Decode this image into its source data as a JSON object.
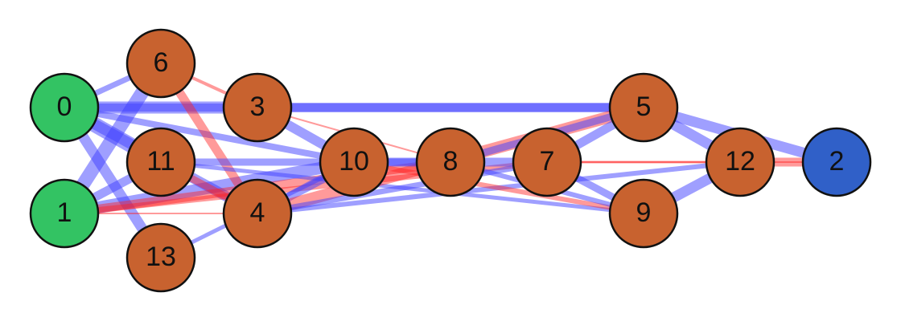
{
  "colors": {
    "input": "#33c363",
    "hidden": "#c8622f",
    "output": "#3060c8",
    "positive": "#4040ff",
    "negative": "#ff2020",
    "border": "#111111"
  },
  "nodes": [
    {
      "id": 0,
      "label": "0",
      "type": "input"
    },
    {
      "id": 1,
      "label": "1",
      "type": "input"
    },
    {
      "id": 2,
      "label": "2",
      "type": "output"
    },
    {
      "id": 3,
      "label": "3",
      "type": "hidden"
    },
    {
      "id": 4,
      "label": "4",
      "type": "hidden"
    },
    {
      "id": 5,
      "label": "5",
      "type": "hidden"
    },
    {
      "id": 6,
      "label": "6",
      "type": "hidden"
    },
    {
      "id": 7,
      "label": "7",
      "type": "hidden"
    },
    {
      "id": 8,
      "label": "8",
      "type": "hidden"
    },
    {
      "id": 9,
      "label": "9",
      "type": "hidden"
    },
    {
      "id": 10,
      "label": "10",
      "type": "hidden"
    },
    {
      "id": 11,
      "label": "11",
      "type": "hidden"
    },
    {
      "id": 12,
      "label": "12",
      "type": "hidden"
    },
    {
      "id": 13,
      "label": "13",
      "type": "hidden"
    }
  ],
  "edges": [
    {
      "from": 0,
      "to": 3,
      "sign": "positive",
      "weight": 0.7
    },
    {
      "from": 0,
      "to": 5,
      "sign": "positive",
      "weight": 0.45
    },
    {
      "from": 0,
      "to": 6,
      "sign": "positive",
      "weight": 0.3
    },
    {
      "from": 0,
      "to": 11,
      "sign": "positive",
      "weight": 0.9
    },
    {
      "from": 0,
      "to": 10,
      "sign": "positive",
      "weight": 0.35
    },
    {
      "from": 0,
      "to": 4,
      "sign": "positive",
      "weight": 0.6
    },
    {
      "from": 0,
      "to": 13,
      "sign": "positive",
      "weight": 0.6
    },
    {
      "from": 1,
      "to": 6,
      "sign": "positive",
      "weight": 0.8
    },
    {
      "from": 1,
      "to": 11,
      "sign": "positive",
      "weight": 0.5
    },
    {
      "from": 1,
      "to": 10,
      "sign": "positive",
      "weight": 0.7
    },
    {
      "from": 1,
      "to": 4,
      "sign": "negative",
      "weight": 0.05
    },
    {
      "from": 1,
      "to": 8,
      "sign": "negative",
      "weight": 0.5
    },
    {
      "from": 1,
      "to": 7,
      "sign": "negative",
      "weight": 0.3
    },
    {
      "from": 6,
      "to": 3,
      "sign": "negative",
      "weight": 0.15
    },
    {
      "from": 6,
      "to": 4,
      "sign": "negative",
      "weight": 0.5
    },
    {
      "from": 3,
      "to": 10,
      "sign": "positive",
      "weight": 0.55
    },
    {
      "from": 3,
      "to": 8,
      "sign": "negative",
      "weight": 0.05
    },
    {
      "from": 3,
      "to": 5,
      "sign": "positive",
      "weight": 0.55
    },
    {
      "from": 11,
      "to": 4,
      "sign": "negative",
      "weight": 0.4
    },
    {
      "from": 11,
      "to": 8,
      "sign": "positive",
      "weight": 0.4
    },
    {
      "from": 11,
      "to": 9,
      "sign": "positive",
      "weight": 0.2
    },
    {
      "from": 13,
      "to": 10,
      "sign": "positive",
      "weight": 0.2
    },
    {
      "from": 4,
      "to": 10,
      "sign": "positive",
      "weight": 0.5
    },
    {
      "from": 4,
      "to": 5,
      "sign": "negative",
      "weight": 0.7
    },
    {
      "from": 4,
      "to": 7,
      "sign": "positive",
      "weight": 0.3
    },
    {
      "from": 4,
      "to": 12,
      "sign": "positive",
      "weight": 0.25
    },
    {
      "from": 10,
      "to": 8,
      "sign": "positive",
      "weight": 0.5
    },
    {
      "from": 10,
      "to": 9,
      "sign": "negative",
      "weight": 0.25
    },
    {
      "from": 8,
      "to": 5,
      "sign": "positive",
      "weight": 0.4
    },
    {
      "from": 8,
      "to": 7,
      "sign": "positive",
      "weight": 0.5
    },
    {
      "from": 8,
      "to": 9,
      "sign": "positive",
      "weight": 0.25
    },
    {
      "from": 7,
      "to": 5,
      "sign": "positive",
      "weight": 0.5
    },
    {
      "from": 7,
      "to": 9,
      "sign": "positive",
      "weight": 0.4
    },
    {
      "from": 7,
      "to": 12,
      "sign": "negative",
      "weight": 0.1
    },
    {
      "from": 7,
      "to": 2,
      "sign": "negative",
      "weight": 0.05
    },
    {
      "from": 5,
      "to": 12,
      "sign": "positive",
      "weight": 0.6
    },
    {
      "from": 5,
      "to": 2,
      "sign": "positive",
      "weight": 0.6
    },
    {
      "from": 9,
      "to": 12,
      "sign": "positive",
      "weight": 0.6
    },
    {
      "from": 12,
      "to": 2,
      "sign": "negative",
      "weight": 0.5
    }
  ]
}
